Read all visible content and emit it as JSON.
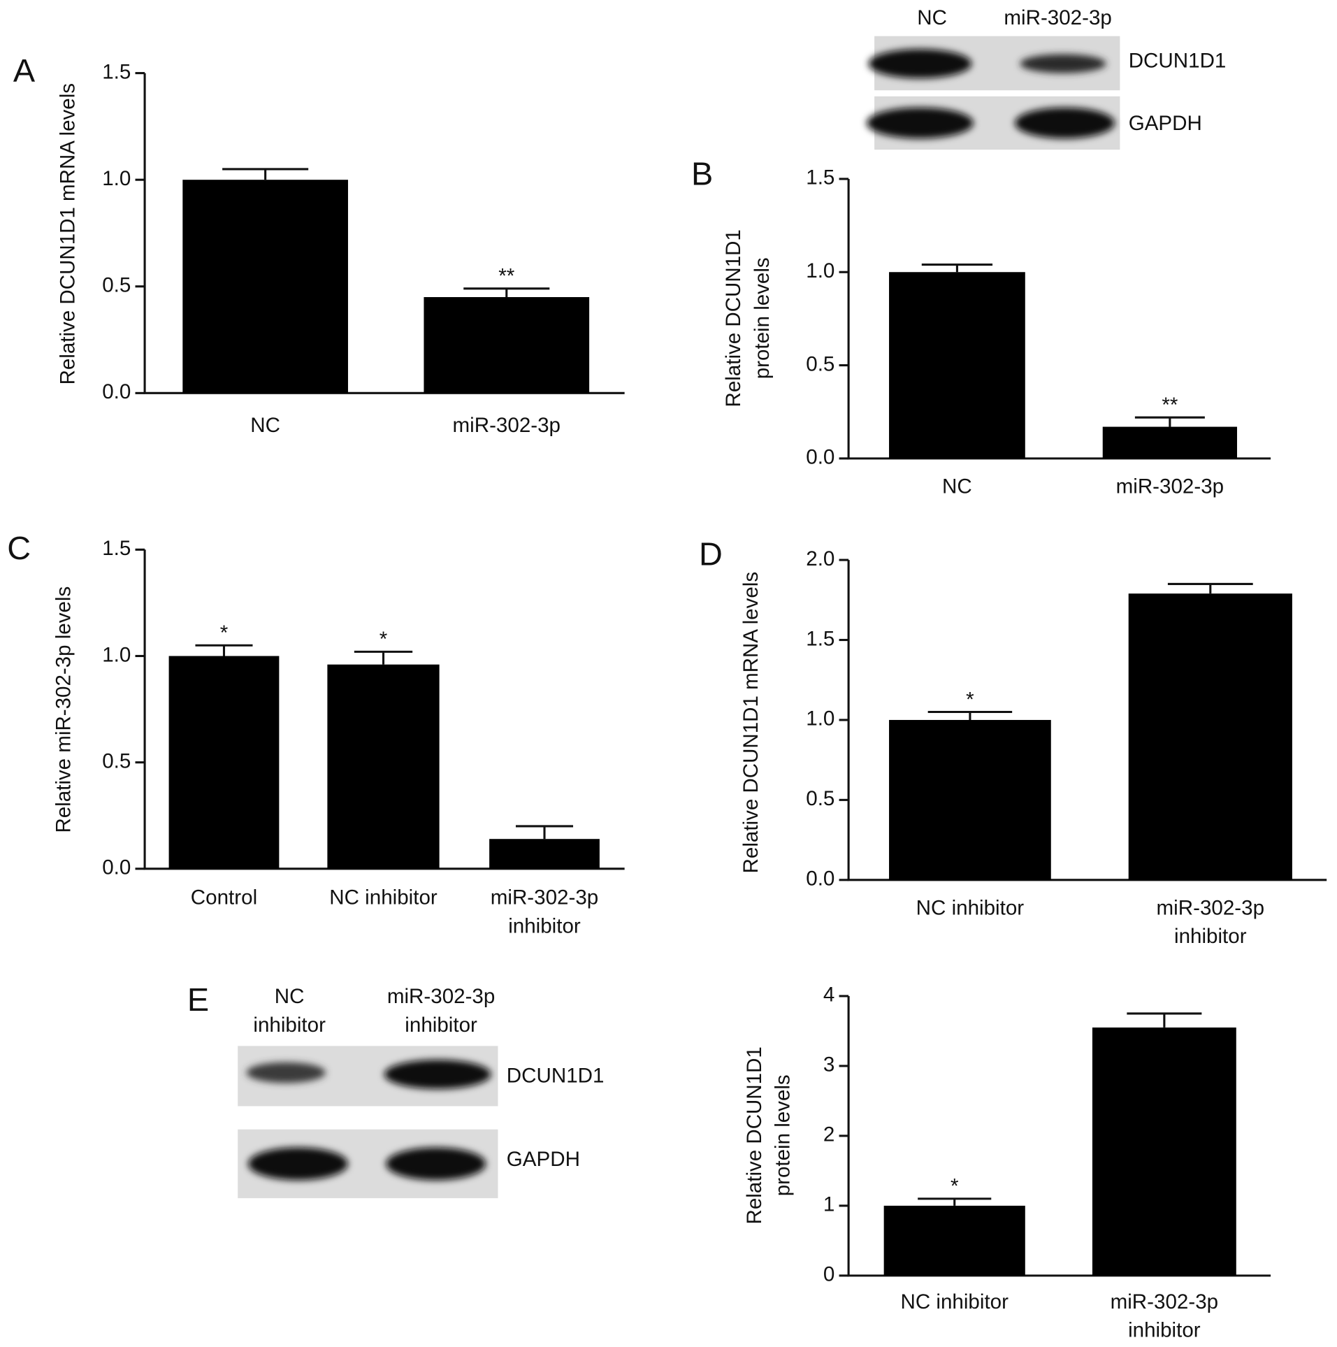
{
  "chart_data": [
    {
      "type": "bar",
      "panel": "A",
      "ylabel": [
        "Relative DCUN1D1 mRNA levels"
      ],
      "categories": [
        "NC",
        "miR-302-3p"
      ],
      "values": [
        1.0,
        0.45
      ],
      "errors": [
        0.05,
        0.04
      ],
      "annotations": [
        null,
        "**"
      ],
      "color": "#000000",
      "ylim": [
        0,
        1.5
      ],
      "yticks": [
        {
          "value": 0,
          "label": "0.0"
        },
        0.5,
        {
          "value": 1,
          "label": "1.0"
        },
        1.5
      ]
    },
    {
      "type": "bar",
      "panel": "B",
      "ylabel": [
        "Relative DCUN1D1",
        "protein levels"
      ],
      "categories": [
        "NC",
        "miR-302-3p"
      ],
      "values": [
        1.0,
        0.17
      ],
      "errors": [
        0.04,
        0.05
      ],
      "annotations": [
        null,
        "**"
      ],
      "color": "#000000",
      "ylim": [
        0,
        1.5
      ],
      "yticks": [
        {
          "value": 0,
          "label": "0.0"
        },
        0.5,
        {
          "value": 1,
          "label": "1.0"
        },
        1.5
      ],
      "blot": {
        "lanes": [
          [
            "NC"
          ],
          [
            "miR-302-3p"
          ]
        ],
        "bands": [
          "DCUN1D1",
          "GAPDH"
        ]
      }
    },
    {
      "type": "bar",
      "panel": "C",
      "ylabel": [
        "Relative miR-302-3p levels"
      ],
      "categories": [
        [
          "Control"
        ],
        [
          "NC inhibitor"
        ],
        [
          "miR-302-3p",
          "inhibitor"
        ]
      ],
      "values": [
        1.0,
        0.96,
        0.14
      ],
      "errors": [
        0.05,
        0.06,
        0.06
      ],
      "annotations": [
        "*",
        "*",
        null
      ],
      "color": "#000000",
      "ylim": [
        0,
        1.5
      ],
      "yticks": [
        {
          "value": 0,
          "label": "0.0"
        },
        0.5,
        {
          "value": 1,
          "label": "1.0"
        },
        1.5
      ]
    },
    {
      "type": "bar",
      "panel": "D",
      "ylabel": [
        "Relative DCUN1D1 mRNA levels"
      ],
      "categories": [
        [
          "NC inhibitor"
        ],
        [
          "miR-302-3p",
          "inhibitor"
        ]
      ],
      "values": [
        1.0,
        1.79
      ],
      "errors": [
        0.05,
        0.06
      ],
      "annotations": [
        "*",
        null
      ],
      "color": "#000000",
      "ylim": [
        0,
        2
      ],
      "yticks": [
        {
          "value": 0,
          "label": "0.0"
        },
        0.5,
        {
          "value": 1,
          "label": "1.0"
        },
        1.5,
        {
          "value": 2,
          "label": "2.0"
        }
      ]
    },
    {
      "type": "bar",
      "panel": "E",
      "ylabel": [
        "Relative DCUN1D1",
        "protein levels"
      ],
      "categories": [
        [
          "NC inhibitor"
        ],
        [
          "miR-302-3p",
          "inhibitor"
        ]
      ],
      "values": [
        1.0,
        3.55
      ],
      "errors": [
        0.1,
        0.2
      ],
      "annotations": [
        "*",
        null
      ],
      "color": "#000000",
      "ylim": [
        0,
        4
      ],
      "yticks": [
        0,
        1,
        2,
        3,
        4
      ],
      "blot": {
        "lanes": [
          [
            "NC",
            "inhibitor"
          ],
          [
            "miR-302-3p",
            "inhibitor"
          ]
        ],
        "bands": [
          "DCUN1D1",
          "GAPDH"
        ]
      }
    }
  ]
}
